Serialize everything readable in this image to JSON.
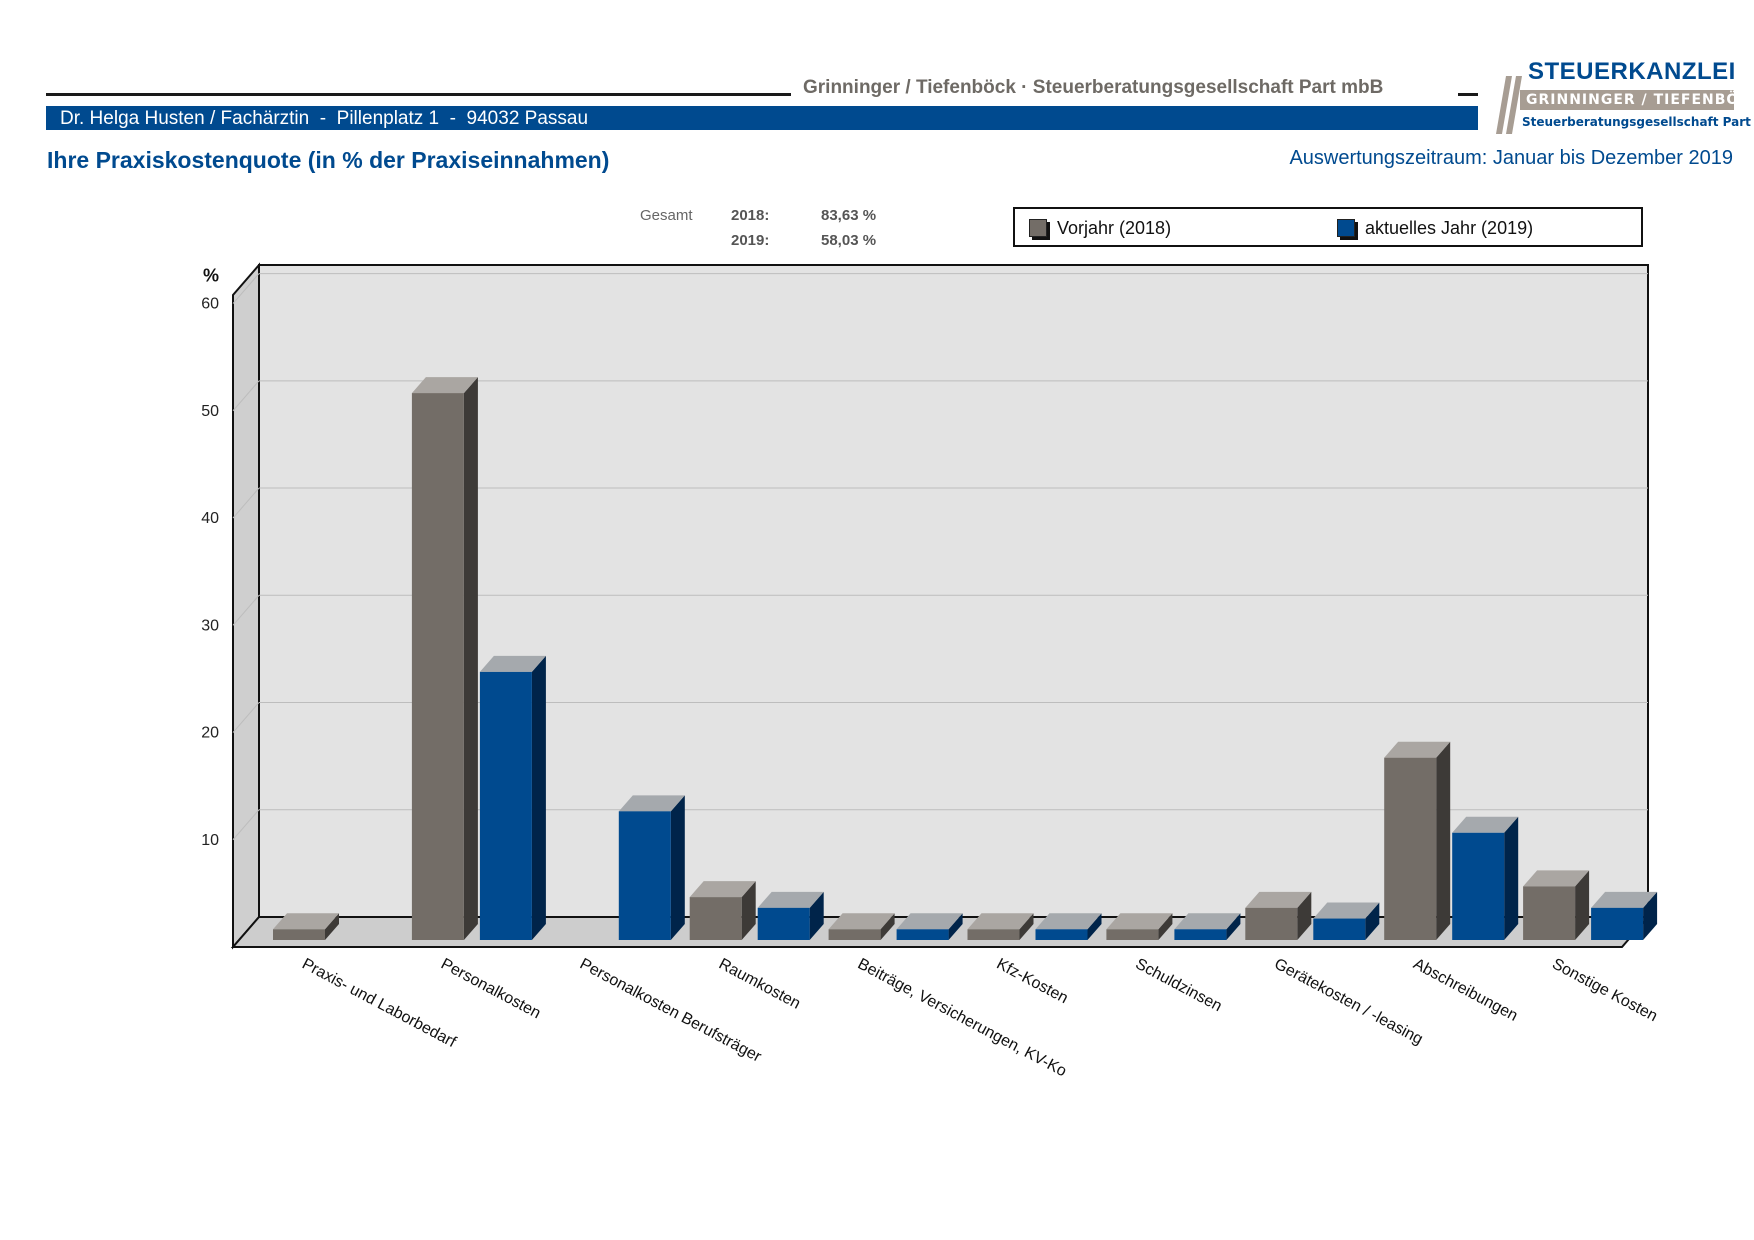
{
  "header": {
    "firm": "Grinninger / Tiefenböck · Steuerberatungsgesellschaft Part mbB",
    "client": "Dr. Helga Husten / Fachärztin  -  Pillenplatz 1  -  94032 Passau",
    "logo": {
      "line1": "STEUERKANZLEI",
      "line2_left": "GRINNINGER",
      "line2_right": "TIEFENBÖCK",
      "line3": "Steuerberatungsgesellschaft Part mbB"
    }
  },
  "title": "Ihre Praxiskostenquote (in % der Praxiseinnahmen)",
  "period": "Auswertungszeitraum: Januar bis Dezember 2019",
  "totals": {
    "label": "Gesamt",
    "rows": [
      {
        "year": "2018:",
        "value": "83,63 %"
      },
      {
        "year": "2019:",
        "value": "58,03 %"
      }
    ]
  },
  "colors": {
    "prior": "#736d67",
    "current": "#004a8f"
  },
  "chart_data": {
    "type": "bar",
    "ylabel": "%",
    "ylim": [
      0,
      60
    ],
    "yticks": [
      "10",
      "20",
      "30",
      "40",
      "50",
      "60"
    ],
    "grid": true,
    "legend_position": "top-right",
    "categories": [
      "Praxis- und Laborbedarf",
      "Personalkosten",
      "Personalkosten Berufsträger",
      "Raumkosten",
      "Beiträge, Versicherungen, KV-Ko",
      "Kfz-Kosten",
      "Schuldzinsen",
      "Gerätekosten / -leasing",
      "Abschreibungen",
      "Sonstige Kosten"
    ],
    "series": [
      {
        "name": "Vorjahr (2018)",
        "values": [
          1,
          51,
          0,
          4,
          1,
          1,
          1,
          3,
          17,
          5
        ]
      },
      {
        "name": "aktuelles Jahr (2019)",
        "values": [
          0,
          25,
          12,
          3,
          1,
          1,
          1,
          2,
          10,
          3
        ]
      }
    ]
  }
}
